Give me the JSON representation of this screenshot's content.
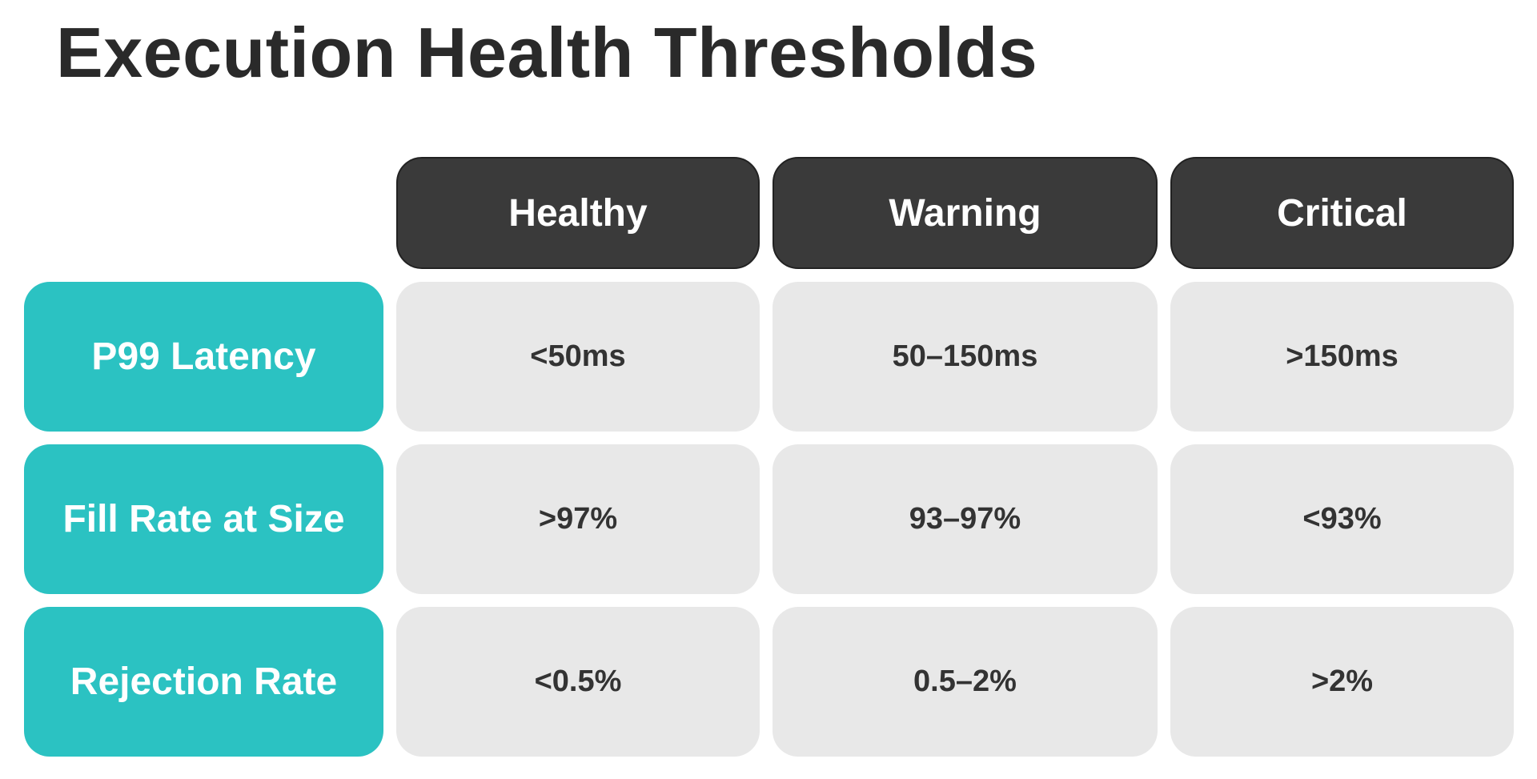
{
  "title": "Execution Health Thresholds",
  "columns": [
    "Healthy",
    "Warning",
    "Critical"
  ],
  "rows": [
    {
      "label": "P99 Latency",
      "values": [
        "<50ms",
        "50–150ms",
        ">150ms"
      ]
    },
    {
      "label": "Fill Rate at Size",
      "values": [
        ">97%",
        "93–97%",
        "<93%"
      ]
    },
    {
      "label": "Rejection Rate",
      "values": [
        "<0.5%",
        "0.5–2%",
        ">2%"
      ]
    }
  ],
  "colors": {
    "title_text": "#2a2a2a",
    "column_header_bg": "#3a3a3a",
    "row_header_bg": "#2bc2c2",
    "value_cell_bg": "#e8e8e8",
    "value_text": "#333333"
  }
}
